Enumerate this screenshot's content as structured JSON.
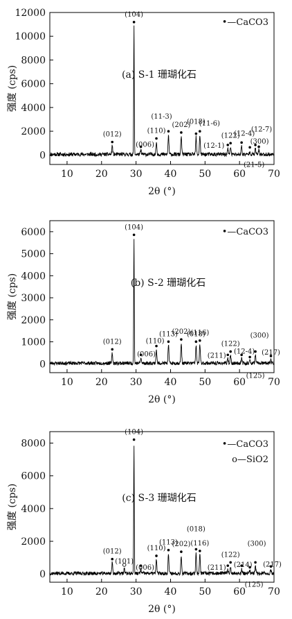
{
  "chart_data": [
    {
      "type": "line",
      "panel": "a",
      "title": "(a) S-1 珊瑚化石",
      "xlabel": "2θ (°)",
      "ylabel": "强度 (cps)",
      "xlim": [
        5,
        70
      ],
      "ylim": [
        -800,
        12000
      ],
      "yticks": [
        0,
        2000,
        4000,
        6000,
        8000,
        10000,
        12000
      ],
      "xticks": [
        10,
        20,
        30,
        40,
        50,
        60,
        70
      ],
      "legend": [
        "•—CaCO3"
      ],
      "legend_placement": "top-right",
      "baseline": 50,
      "noise_amplitude": 160,
      "peaks": [
        {
          "label": "(012)",
          "x": 23.1,
          "y": 800
        },
        {
          "label": "(104)",
          "x": 29.4,
          "y": 10900
        },
        {
          "label": "(006)",
          "x": 31.4,
          "y": 400
        },
        {
          "label": "(110)",
          "x": 35.9,
          "y": 1100
        },
        {
          "label": "(11-3)",
          "x": 39.4,
          "y": 1700
        },
        {
          "label": "(202)",
          "x": 43.1,
          "y": 1600
        },
        {
          "label": "(018)",
          "x": 47.4,
          "y": 1500
        },
        {
          "label": "(11-6)",
          "x": 48.5,
          "y": 1700
        },
        {
          "label": "(12-1)",
          "x": 56.6,
          "y": 550
        },
        {
          "label": "(122)",
          "x": 57.4,
          "y": 700
        },
        {
          "label": "(12-4)",
          "x": 60.6,
          "y": 750
        },
        {
          "label": "(21-5)",
          "x": 63.0,
          "y": 350
        },
        {
          "label": "(300)",
          "x": 64.6,
          "y": 550
        },
        {
          "label": "(12-7)",
          "x": 65.6,
          "y": 400
        }
      ]
    },
    {
      "type": "line",
      "panel": "b",
      "title": "(b) S-2 珊瑚化石",
      "xlabel": "2θ (°)",
      "ylabel": "强度 (cps)",
      "xlim": [
        5,
        70
      ],
      "ylim": [
        -400,
        6500
      ],
      "yticks": [
        0,
        1000,
        2000,
        3000,
        4000,
        5000,
        6000
      ],
      "xticks": [
        10,
        20,
        30,
        40,
        50,
        60,
        70
      ],
      "legend": [
        "•—CaCO3"
      ],
      "legend_placement": "top-right",
      "baseline": 30,
      "noise_amplitude": 80,
      "peaks": [
        {
          "label": "(012)",
          "x": 23.1,
          "y": 500
        },
        {
          "label": "(104)",
          "x": 29.4,
          "y": 5700
        },
        {
          "label": "(006)",
          "x": 31.4,
          "y": 250
        },
        {
          "label": "(110)",
          "x": 35.9,
          "y": 650
        },
        {
          "label": "(113)",
          "x": 39.4,
          "y": 850
        },
        {
          "label": "(202)",
          "x": 43.1,
          "y": 950
        },
        {
          "label": "(018)",
          "x": 47.4,
          "y": 850
        },
        {
          "label": "(116)",
          "x": 48.5,
          "y": 900
        },
        {
          "label": "(211)",
          "x": 56.6,
          "y": 250
        },
        {
          "label": "(122)",
          "x": 57.4,
          "y": 400
        },
        {
          "label": "(12-4)",
          "x": 60.6,
          "y": 250
        },
        {
          "label": "(125)",
          "x": 63.0,
          "y": 150
        },
        {
          "label": "(300)",
          "x": 64.6,
          "y": 400
        },
        {
          "label": "(217)",
          "x": 69.1,
          "y": 200
        }
      ]
    },
    {
      "type": "line",
      "panel": "c",
      "title": "(c) S-3 珊瑚化石",
      "xlabel": "2θ (°)",
      "ylabel": "强度 (cps)",
      "xlim": [
        5,
        70
      ],
      "ylim": [
        -500,
        8700
      ],
      "yticks": [
        0,
        2000,
        4000,
        6000,
        8000
      ],
      "xticks": [
        10,
        20,
        30,
        40,
        50,
        60,
        70
      ],
      "legend": [
        "•—CaCO3",
        "o—SiO2"
      ],
      "legend_placement": "top-right",
      "baseline": 40,
      "noise_amplitude": 110,
      "peaks": [
        {
          "label": "(012)",
          "x": 23.1,
          "y": 700
        },
        {
          "label": "(101)",
          "x": 26.6,
          "y": 350
        },
        {
          "label": "(104)",
          "x": 29.4,
          "y": 8000
        },
        {
          "label": "(006)",
          "x": 31.4,
          "y": 300
        },
        {
          "label": "(110)",
          "x": 35.9,
          "y": 900
        },
        {
          "label": "(113)",
          "x": 39.4,
          "y": 1250
        },
        {
          "label": "(202)",
          "x": 43.1,
          "y": 1150
        },
        {
          "label": "(018)",
          "x": 47.4,
          "y": 1300
        },
        {
          "label": "(116)",
          "x": 48.5,
          "y": 1200
        },
        {
          "label": "(211)",
          "x": 56.6,
          "y": 300
        },
        {
          "label": "(122)",
          "x": 57.4,
          "y": 500
        },
        {
          "label": "(214)",
          "x": 60.6,
          "y": 300
        },
        {
          "label": "(125)",
          "x": 63.0,
          "y": 200
        },
        {
          "label": "(300)",
          "x": 64.6,
          "y": 500
        },
        {
          "label": "(217)",
          "x": 69.1,
          "y": 250
        }
      ]
    }
  ]
}
